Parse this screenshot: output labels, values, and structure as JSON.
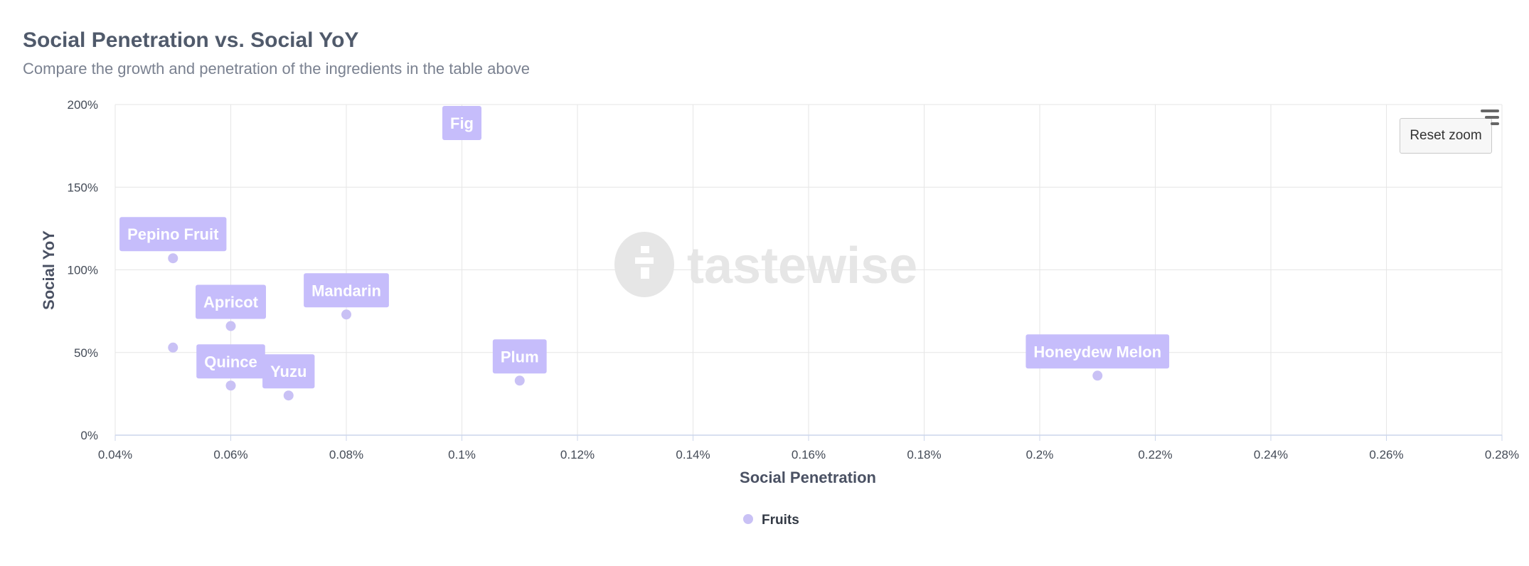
{
  "header": {
    "title": "Social Penetration vs. Social YoY",
    "subtitle": "Compare the growth and penetration of the ingredients in the table above"
  },
  "controls": {
    "reset_zoom_label": "Reset zoom",
    "menu_icon": "hamburger-menu-icon"
  },
  "watermark": {
    "text": "tastewise",
    "icon": "tastewise-logo-icon"
  },
  "colors": {
    "point": "#c9c1f5",
    "label_bg": "#c6bdfb",
    "grid": "#e6e6e6",
    "watermark": "#e6e6e6"
  },
  "chart_data": {
    "type": "scatter",
    "title": "Social Penetration vs. Social YoY",
    "subtitle": "Compare the growth and penetration of the ingredients in the table above",
    "xlabel": "Social Penetration",
    "ylabel": "Social YoY",
    "xlim": [
      0.04,
      0.28
    ],
    "ylim": [
      0,
      200
    ],
    "x_ticks": [
      0.04,
      0.06,
      0.08,
      0.1,
      0.12,
      0.14,
      0.16,
      0.18,
      0.2,
      0.22,
      0.24,
      0.26,
      0.28
    ],
    "x_tick_labels": [
      "0.04%",
      "0.06%",
      "0.08%",
      "0.1%",
      "0.12%",
      "0.14%",
      "0.16%",
      "0.18%",
      "0.2%",
      "0.22%",
      "0.24%",
      "0.26%",
      "0.28%"
    ],
    "y_ticks": [
      0,
      50,
      100,
      150,
      200
    ],
    "y_tick_labels": [
      "0%",
      "50%",
      "100%",
      "150%",
      "200%"
    ],
    "grid": true,
    "legend_position": "bottom-center",
    "series": [
      {
        "name": "Fruits",
        "points": [
          {
            "label": "Fig",
            "x": 0.1,
            "y": 205
          },
          {
            "label": "Pepino Fruit",
            "x": 0.05,
            "y": 107
          },
          {
            "label": "Apricot",
            "x": 0.06,
            "y": 66
          },
          {
            "label": "Mandarin",
            "x": 0.08,
            "y": 73
          },
          {
            "label": "",
            "x": 0.05,
            "y": 53
          },
          {
            "label": "Quince",
            "x": 0.06,
            "y": 30
          },
          {
            "label": "Yuzu",
            "x": 0.07,
            "y": 24
          },
          {
            "label": "Plum",
            "x": 0.11,
            "y": 33
          },
          {
            "label": "Honeydew Melon",
            "x": 0.21,
            "y": 36
          }
        ]
      }
    ]
  }
}
